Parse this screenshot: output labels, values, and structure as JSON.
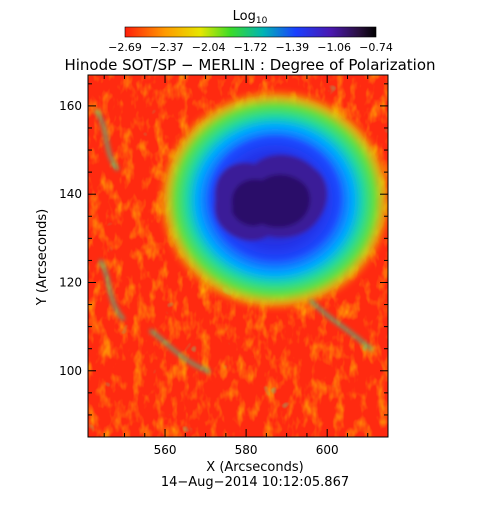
{
  "colorbar": {
    "label_base": "Log",
    "label_sub": "10",
    "tick_labels": [
      "−2.69",
      "−2.37",
      "−2.04",
      "−1.72",
      "−1.39",
      "−1.06",
      "−0.74"
    ],
    "range": [
      -2.69,
      -0.74
    ],
    "colormap": "rainbow (red-yellow-green-blue-purple-black)"
  },
  "title": "Hinode SOT/SP − MERLIN : Degree of Polarization",
  "x_axis": {
    "label": "X (Arcseconds)",
    "tick_labels": [
      "560",
      "580",
      "600"
    ],
    "range": [
      541,
      615
    ]
  },
  "y_axis": {
    "label": "Y (Arcseconds)",
    "tick_labels": [
      "100",
      "120",
      "140",
      "160"
    ],
    "range": [
      85,
      167
    ]
  },
  "footer": {
    "timestamp": "14−Aug−2014 10:12:05.867"
  },
  "image": {
    "content": "sunspot degree-of-polarization map",
    "background_color": "#ff2a10",
    "umbra_color": "#2a1060"
  }
}
